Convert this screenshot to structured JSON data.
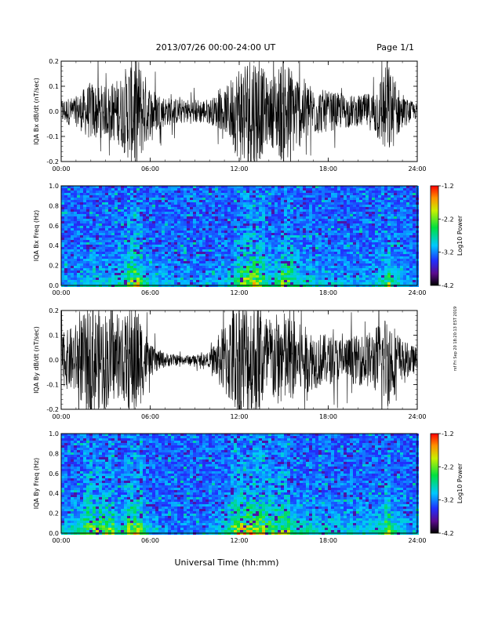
{
  "header": {
    "title": "2013/07/26  00:00-24:00 UT",
    "page": "Page 1/1"
  },
  "xlabel": "Universal Time (hh:mm)",
  "side_stamp": "rsf Fri Sep 20 18:20:13 EST 2019",
  "chart_data": [
    {
      "type": "line",
      "ylabel": "IQA Bx dB/dt (nT/sec)",
      "xlim": [
        0,
        24
      ],
      "ylim": [
        -0.2,
        0.2
      ],
      "yticks": [
        -0.2,
        -0.1,
        0.0,
        0.1,
        0.2
      ],
      "yticklabels": [
        "-0.2",
        "-0.1",
        "0.0",
        "0.1",
        "0.2"
      ],
      "xticks": [
        0,
        6,
        12,
        18,
        24
      ],
      "xticklabels": [
        "00:00",
        "06:00",
        "12:00",
        "18:00",
        "24:00"
      ],
      "series": [
        {
          "x": [
            0,
            1,
            2,
            3,
            4,
            5,
            6,
            7,
            8,
            9,
            10,
            11,
            12,
            13,
            14,
            15,
            16,
            17,
            18,
            19,
            20,
            21,
            22,
            23,
            24
          ],
          "amplitude": [
            0.05,
            0.06,
            0.12,
            0.1,
            0.14,
            0.25,
            0.1,
            0.06,
            0.05,
            0.05,
            0.05,
            0.08,
            0.2,
            0.25,
            0.12,
            0.22,
            0.15,
            0.1,
            0.08,
            0.07,
            0.06,
            0.08,
            0.2,
            0.06,
            0.03
          ]
        }
      ]
    },
    {
      "type": "heatmap",
      "ylabel": "IQA Bx Freq (Hz)",
      "xlim": [
        0,
        24
      ],
      "ylim": [
        0,
        1.0
      ],
      "yticks": [
        0.0,
        0.2,
        0.4,
        0.6,
        0.8,
        1.0
      ],
      "yticklabels": [
        "0.0",
        "0.2",
        "0.4",
        "0.6",
        "0.8",
        "1.0"
      ],
      "xticks": [
        0,
        6,
        12,
        18,
        24
      ],
      "xticklabels": [
        "00:00",
        "06:00",
        "12:00",
        "18:00",
        "24:00"
      ],
      "colorbar": {
        "label": "Log10 Power",
        "range": [
          -4.2,
          -1.2
        ],
        "ticks": [
          -1.2,
          -2.2,
          -3.2,
          -4.2
        ],
        "ticklabels": [
          "-1.2",
          "-2.2",
          "-3.2",
          "-4.2"
        ]
      }
    },
    {
      "type": "line",
      "ylabel": "IQA By dB/dt (nT/sec)",
      "xlim": [
        0,
        24
      ],
      "ylim": [
        -0.2,
        0.2
      ],
      "yticks": [
        -0.2,
        -0.1,
        0.0,
        0.1,
        0.2
      ],
      "yticklabels": [
        "-0.2",
        "-0.1",
        "0.0",
        "0.1",
        "0.2"
      ],
      "xticks": [
        0,
        6,
        12,
        18,
        24
      ],
      "xticklabels": [
        "00:00",
        "06:00",
        "12:00",
        "18:00",
        "24:00"
      ],
      "series": [
        {
          "x": [
            0,
            1,
            2,
            3,
            4,
            5,
            6,
            7,
            8,
            9,
            10,
            11,
            12,
            13,
            14,
            15,
            16,
            17,
            18,
            19,
            20,
            21,
            22,
            23,
            24
          ],
          "amplitude": [
            0.1,
            0.15,
            0.22,
            0.2,
            0.15,
            0.25,
            0.06,
            0.03,
            0.02,
            0.02,
            0.03,
            0.15,
            0.25,
            0.25,
            0.18,
            0.2,
            0.15,
            0.12,
            0.1,
            0.09,
            0.1,
            0.12,
            0.2,
            0.08,
            0.05
          ]
        }
      ]
    },
    {
      "type": "heatmap",
      "ylabel": "IQA By Freq (Hz)",
      "xlim": [
        0,
        24
      ],
      "ylim": [
        0,
        1.0
      ],
      "yticks": [
        0.0,
        0.2,
        0.4,
        0.6,
        0.8,
        1.0
      ],
      "yticklabels": [
        "0.0",
        "0.2",
        "0.4",
        "0.6",
        "0.8",
        "1.0"
      ],
      "xticks": [
        0,
        6,
        12,
        18,
        24
      ],
      "xticklabels": [
        "00:00",
        "06:00",
        "12:00",
        "18:00",
        "24:00"
      ],
      "colorbar": {
        "label": "Log10 Power",
        "range": [
          -4.2,
          -1.2
        ],
        "ticks": [
          -1.2,
          -2.2,
          -3.2,
          -4.2
        ],
        "ticklabels": [
          "-1.2",
          "-2.2",
          "-3.2",
          "-4.2"
        ]
      }
    }
  ]
}
